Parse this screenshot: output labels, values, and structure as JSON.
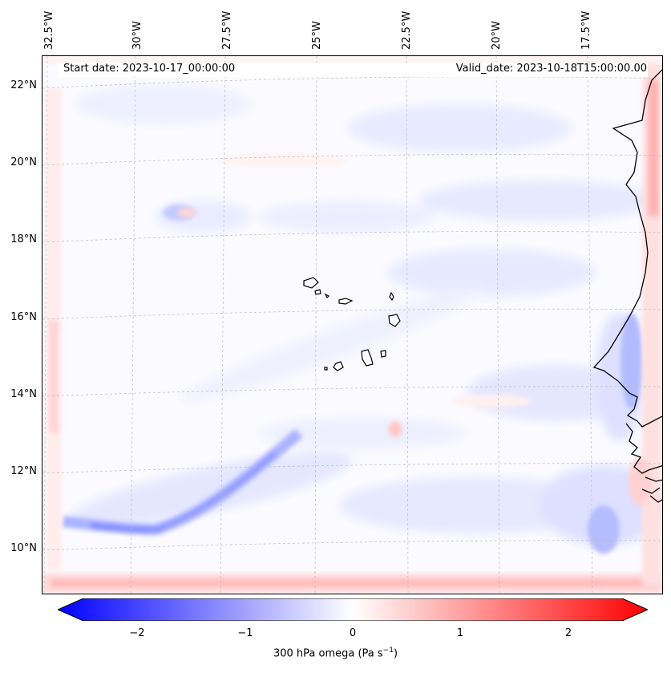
{
  "map": {
    "start_date": "Start date: 2023-10-17_00:00:00",
    "valid_date": "Valid_date: 2023-10-18T15:00:00.00",
    "lat_labels": [
      "22°N",
      "20°N",
      "18°N",
      "16°N",
      "14°N",
      "12°N",
      "10°N"
    ],
    "lon_labels": [
      "32.5°W",
      "30°W",
      "27.5°W",
      "25°W",
      "22.5°W",
      "20°W",
      "17.5°W"
    ],
    "features": [
      "West African coastline",
      "Cabo Verde islands"
    ],
    "colors": {
      "negative": "#0000ff",
      "zero": "#ffffff",
      "positive": "#ff0000",
      "coast": "#000000",
      "grid": "#bbbbbb"
    }
  },
  "colorbar": {
    "ticks": [
      "−2",
      "−1",
      "0",
      "1",
      "2"
    ],
    "label": "300 hPa omega (Pa s",
    "label_exp": "−1",
    "label_close": ")",
    "range": [
      -2.75,
      2.75
    ]
  }
}
